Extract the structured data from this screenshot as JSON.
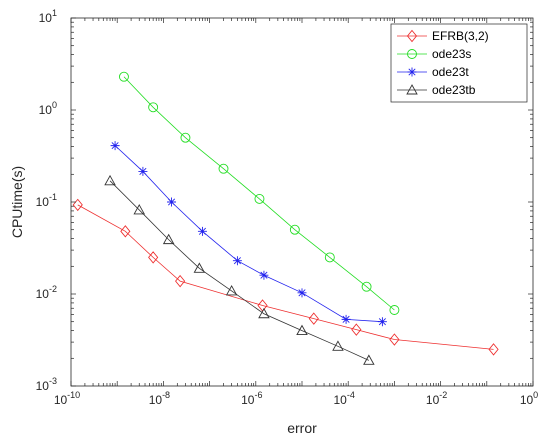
{
  "chart_data": {
    "type": "line",
    "xlabel": "error",
    "ylabel": "CPUtime(s)",
    "x_scale": "log",
    "y_scale": "log",
    "xlim": [
      1e-10,
      1
    ],
    "ylim": [
      0.001,
      10
    ],
    "x_ticks": [
      {
        "value": 1e-10,
        "base": "10",
        "exp": "-10"
      },
      {
        "value": 1e-08,
        "base": "10",
        "exp": "-8"
      },
      {
        "value": 1e-06,
        "base": "10",
        "exp": "-6"
      },
      {
        "value": 0.0001,
        "base": "10",
        "exp": "-4"
      },
      {
        "value": 0.01,
        "base": "10",
        "exp": "-2"
      },
      {
        "value": 1,
        "base": "10",
        "exp": "0"
      }
    ],
    "y_ticks": [
      {
        "value": 0.001,
        "base": "10",
        "exp": "-3"
      },
      {
        "value": 0.01,
        "base": "10",
        "exp": "-2"
      },
      {
        "value": 0.1,
        "base": "10",
        "exp": "-1"
      },
      {
        "value": 1,
        "base": "10",
        "exp": "0"
      },
      {
        "value": 10,
        "base": "10",
        "exp": "1"
      }
    ],
    "grid": false,
    "legend_position": "top-right",
    "series": [
      {
        "name": "EFRB(3,2)",
        "color": "#ee3030",
        "marker": "diamond",
        "x": [
          1.4e-10,
          1.5e-09,
          6e-09,
          2.3e-08,
          1.4e-06,
          1.8e-05,
          0.00015,
          0.001,
          0.14
        ],
        "y": [
          0.093,
          0.048,
          0.025,
          0.0138,
          0.0075,
          0.0054,
          0.0041,
          0.0032,
          0.0025
        ]
      },
      {
        "name": "ode23s",
        "color": "#22dd22",
        "marker": "circle",
        "x": [
          1.4e-09,
          6e-09,
          3e-08,
          2e-07,
          1.2e-06,
          7e-06,
          4e-05,
          0.00025,
          0.001
        ],
        "y": [
          2.3,
          1.07,
          0.5,
          0.23,
          0.108,
          0.05,
          0.025,
          0.012,
          0.0067
        ]
      },
      {
        "name": "ode23t",
        "color": "#2222ee",
        "marker": "asterisk",
        "x": [
          9e-10,
          3.6e-09,
          1.5e-08,
          7e-08,
          4e-07,
          1.5e-06,
          1e-05,
          9e-05,
          0.00055
        ],
        "y": [
          0.41,
          0.215,
          0.1,
          0.048,
          0.023,
          0.016,
          0.0103,
          0.0053,
          0.005
        ]
      },
      {
        "name": "ode23tb",
        "color": "#333333",
        "marker": "triangle",
        "x": [
          7e-10,
          3e-09,
          1.3e-08,
          6e-08,
          3e-07,
          1.5e-06,
          1e-05,
          6e-05,
          0.00028
        ],
        "y": [
          0.17,
          0.082,
          0.039,
          0.019,
          0.0108,
          0.0061,
          0.004,
          0.0027,
          0.0019
        ]
      }
    ]
  }
}
